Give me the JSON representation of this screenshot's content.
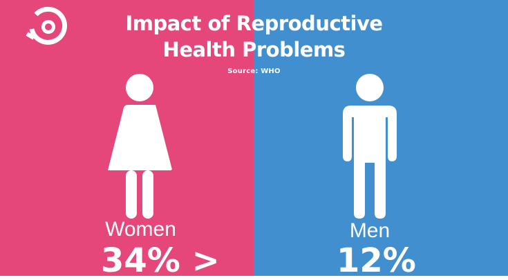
{
  "header": {
    "title_line1": "Impact of Reproductive",
    "title_line2": "Health Problems",
    "source": "Source: WHO"
  },
  "women": {
    "label": "Women",
    "value": "34% >",
    "icon": "woman-icon"
  },
  "men": {
    "label": "Men",
    "value": "12%",
    "icon": "man-icon"
  },
  "colors": {
    "women_panel": "#e5477a",
    "men_panel": "#428fcf",
    "text": "#ffffff"
  },
  "logo": {
    "icon": "eye-logo-icon"
  }
}
